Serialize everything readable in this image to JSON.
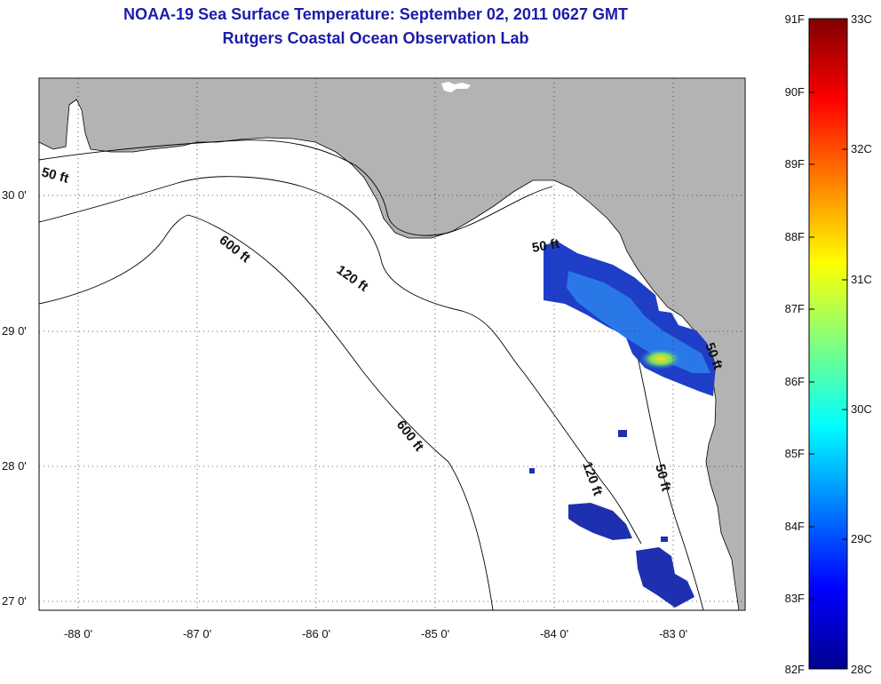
{
  "title": "NOAA-19 Sea Surface Temperature:  September 02, 2011 0627 GMT",
  "subtitle": "Rutgers Coastal Ocean Observation Lab",
  "latitude_labels": [
    "30 0'",
    "29 0'",
    "28 0'",
    "27 0'"
  ],
  "longitude_labels": [
    "-88 0'",
    "-87 0'",
    "-86 0'",
    "-85 0'",
    "-84 0'",
    "-83 0'"
  ],
  "contour_labels": [
    "50 ft",
    "600 ft",
    "120 ft",
    "50 ft",
    "600 ft",
    "120 ft",
    "50 ft",
    "50 ft"
  ],
  "colorbar": {
    "fahrenheit": [
      "91F",
      "90F",
      "89F",
      "88F",
      "87F",
      "86F",
      "85F",
      "84F",
      "83F",
      "82F"
    ],
    "celsius": [
      "33C",
      "32C",
      "31C",
      "30C",
      "29C",
      "28C"
    ]
  },
  "colors": {
    "title": "#1c1ca8",
    "land": "#b3b3b3",
    "water": "#ffffff"
  }
}
